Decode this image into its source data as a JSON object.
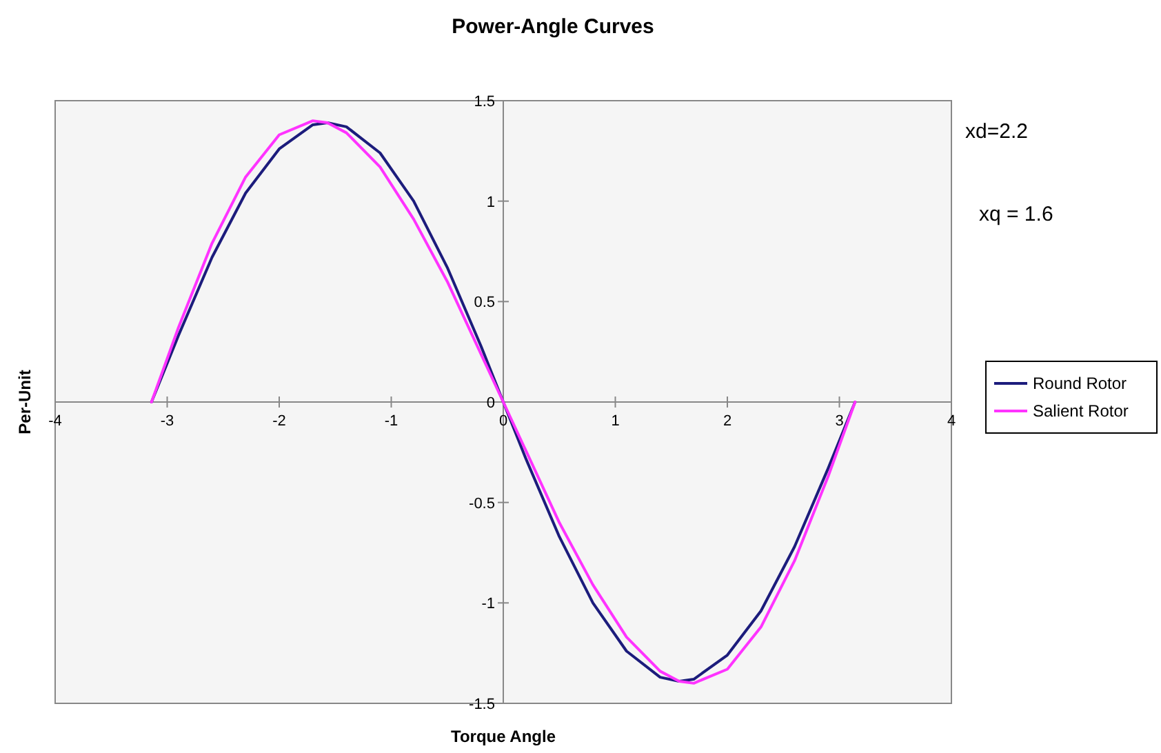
{
  "chart_data": {
    "type": "line",
    "title": "Power-Angle Curves",
    "xlabel": "Torque Angle",
    "ylabel": "Per-Unit",
    "annotations": [
      "xd=2.2",
      "xq = 1.6"
    ],
    "xlim": [
      -4,
      4
    ],
    "xticks": [
      -4,
      -3,
      -2,
      -1,
      0,
      1,
      2,
      3,
      4
    ],
    "ylim": [
      -1.5,
      1.5
    ],
    "yticks": [
      -1.5,
      -1,
      -0.5,
      0,
      0.5,
      1,
      1.5
    ],
    "grid": false,
    "legend": "right",
    "marker": "none",
    "line_style": "solid",
    "x": [
      -3.14,
      -2.9,
      -2.6,
      -2.3,
      -2.0,
      -1.7,
      -1.57,
      -1.4,
      -1.1,
      -0.8,
      -0.5,
      -0.2,
      0,
      0.2,
      0.5,
      0.8,
      1.1,
      1.4,
      1.57,
      1.7,
      2.0,
      2.3,
      2.6,
      2.9,
      3.14
    ],
    "series": [
      {
        "name": "Round Rotor",
        "color": "#1c1c7c",
        "values": [
          0,
          0.33,
          0.72,
          1.04,
          1.26,
          1.38,
          1.39,
          1.37,
          1.24,
          1.0,
          0.67,
          0.28,
          0,
          -0.28,
          -0.67,
          -1.0,
          -1.24,
          -1.37,
          -1.39,
          -1.38,
          -1.26,
          -1.04,
          -0.72,
          -0.33,
          0
        ]
      },
      {
        "name": "Salient Rotor",
        "color": "#ff33ff",
        "values": [
          0,
          0.37,
          0.79,
          1.12,
          1.33,
          1.4,
          1.39,
          1.34,
          1.17,
          0.91,
          0.6,
          0.24,
          0,
          -0.24,
          -0.6,
          -0.91,
          -1.17,
          -1.34,
          -1.39,
          -1.4,
          -1.33,
          -1.12,
          -0.79,
          -0.37,
          0
        ]
      }
    ]
  }
}
